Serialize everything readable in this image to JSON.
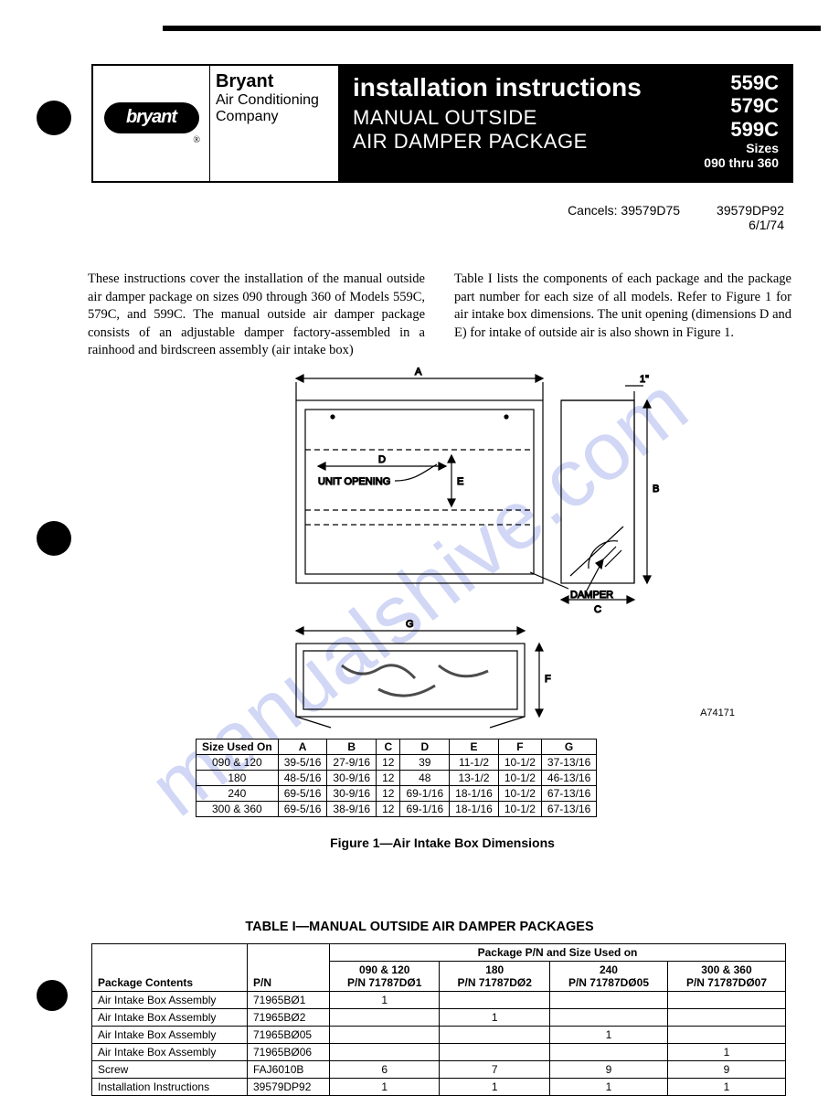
{
  "brand": {
    "logo_text": "bryant",
    "name": "Bryant",
    "line2": "Air Conditioning",
    "line3": "Company"
  },
  "title": {
    "main": "installation instructions",
    "sub1": "MANUAL OUTSIDE",
    "sub2": "AIR DAMPER PACKAGE"
  },
  "models": {
    "m1": "559C",
    "m2": "579C",
    "m3": "599C",
    "sizes_label": "Sizes",
    "sizes_range": "090 thru 360"
  },
  "meta": {
    "cancels": "Cancels: 39579D75",
    "doc_no": "39579DP92",
    "date": "6/1/74"
  },
  "intro": {
    "col1": "These instructions cover the installation of the manual outside air damper package on sizes 090 through 360 of Models 559C, 579C, and 599C. The manual outside air damper package consists of an adjustable damper factory-assembled in a rainhood and birdscreen assembly (air intake box)",
    "col2": "Table I lists the components of each package and the package part number for each size of all models. Refer to Figure 1 for air intake box dimensions. The unit opening (dimensions D and E) for intake of outside air is also shown in Figure 1."
  },
  "figure": {
    "caption": "Figure 1—Air Intake Box Dimensions",
    "code": "A74171",
    "labels": {
      "unit_opening": "UNIT OPENING",
      "damper": "DAMPER",
      "A": "A",
      "B": "B",
      "C": "C",
      "D": "D",
      "E": "E",
      "F": "F",
      "G": "G",
      "one_inch": "1\""
    }
  },
  "dim_table": {
    "headers": [
      "Size Used On",
      "A",
      "B",
      "C",
      "D",
      "E",
      "F",
      "G"
    ],
    "rows": [
      [
        "090 & 120",
        "39-5/16",
        "27-9/16",
        "12",
        "39",
        "11-1/2",
        "10-1/2",
        "37-13/16"
      ],
      [
        "180",
        "48-5/16",
        "30-9/16",
        "12",
        "48",
        "13-1/2",
        "10-1/2",
        "46-13/16"
      ],
      [
        "240",
        "69-5/16",
        "30-9/16",
        "12",
        "69-1/16",
        "18-1/16",
        "10-1/2",
        "67-13/16"
      ],
      [
        "300 & 360",
        "69-5/16",
        "38-9/16",
        "12",
        "69-1/16",
        "18-1/16",
        "10-1/2",
        "67-13/16"
      ]
    ]
  },
  "table1": {
    "title": "TABLE I—MANUAL OUTSIDE AIR DAMPER PACKAGES",
    "h_package_contents": "Package Contents",
    "h_pn": "P/N",
    "h_span": "Package P/N and Size Used on",
    "size_cols": [
      {
        "label": "090 & 120",
        "pn": "P/N 71787DØ1"
      },
      {
        "label": "180",
        "pn": "P/N 71787DØ2"
      },
      {
        "label": "240",
        "pn": "P/N 71787DØ05"
      },
      {
        "label": "300 & 360",
        "pn": "P/N 71787DØ07"
      }
    ],
    "rows": [
      {
        "name": "Air Intake Box Assembly",
        "pn": "71965BØ1",
        "q": [
          "1",
          "",
          "",
          ""
        ]
      },
      {
        "name": "Air Intake Box Assembly",
        "pn": "71965BØ2",
        "q": [
          "",
          "1",
          "",
          ""
        ]
      },
      {
        "name": "Air Intake Box Assembly",
        "pn": "71965BØ05",
        "q": [
          "",
          "",
          "1",
          ""
        ]
      },
      {
        "name": "Air Intake Box Assembly",
        "pn": "71965BØ06",
        "q": [
          "",
          "",
          "",
          "1"
        ]
      },
      {
        "name": "Screw",
        "pn": "FAJ6010B",
        "q": [
          "6",
          "7",
          "9",
          "9"
        ]
      },
      {
        "name": "Installation Instructions",
        "pn": "39579DP92",
        "q": [
          "1",
          "1",
          "1",
          "1"
        ]
      }
    ]
  },
  "watermark": "manualshive.com",
  "colors": {
    "wm": "rgba(90,110,220,0.28)"
  }
}
